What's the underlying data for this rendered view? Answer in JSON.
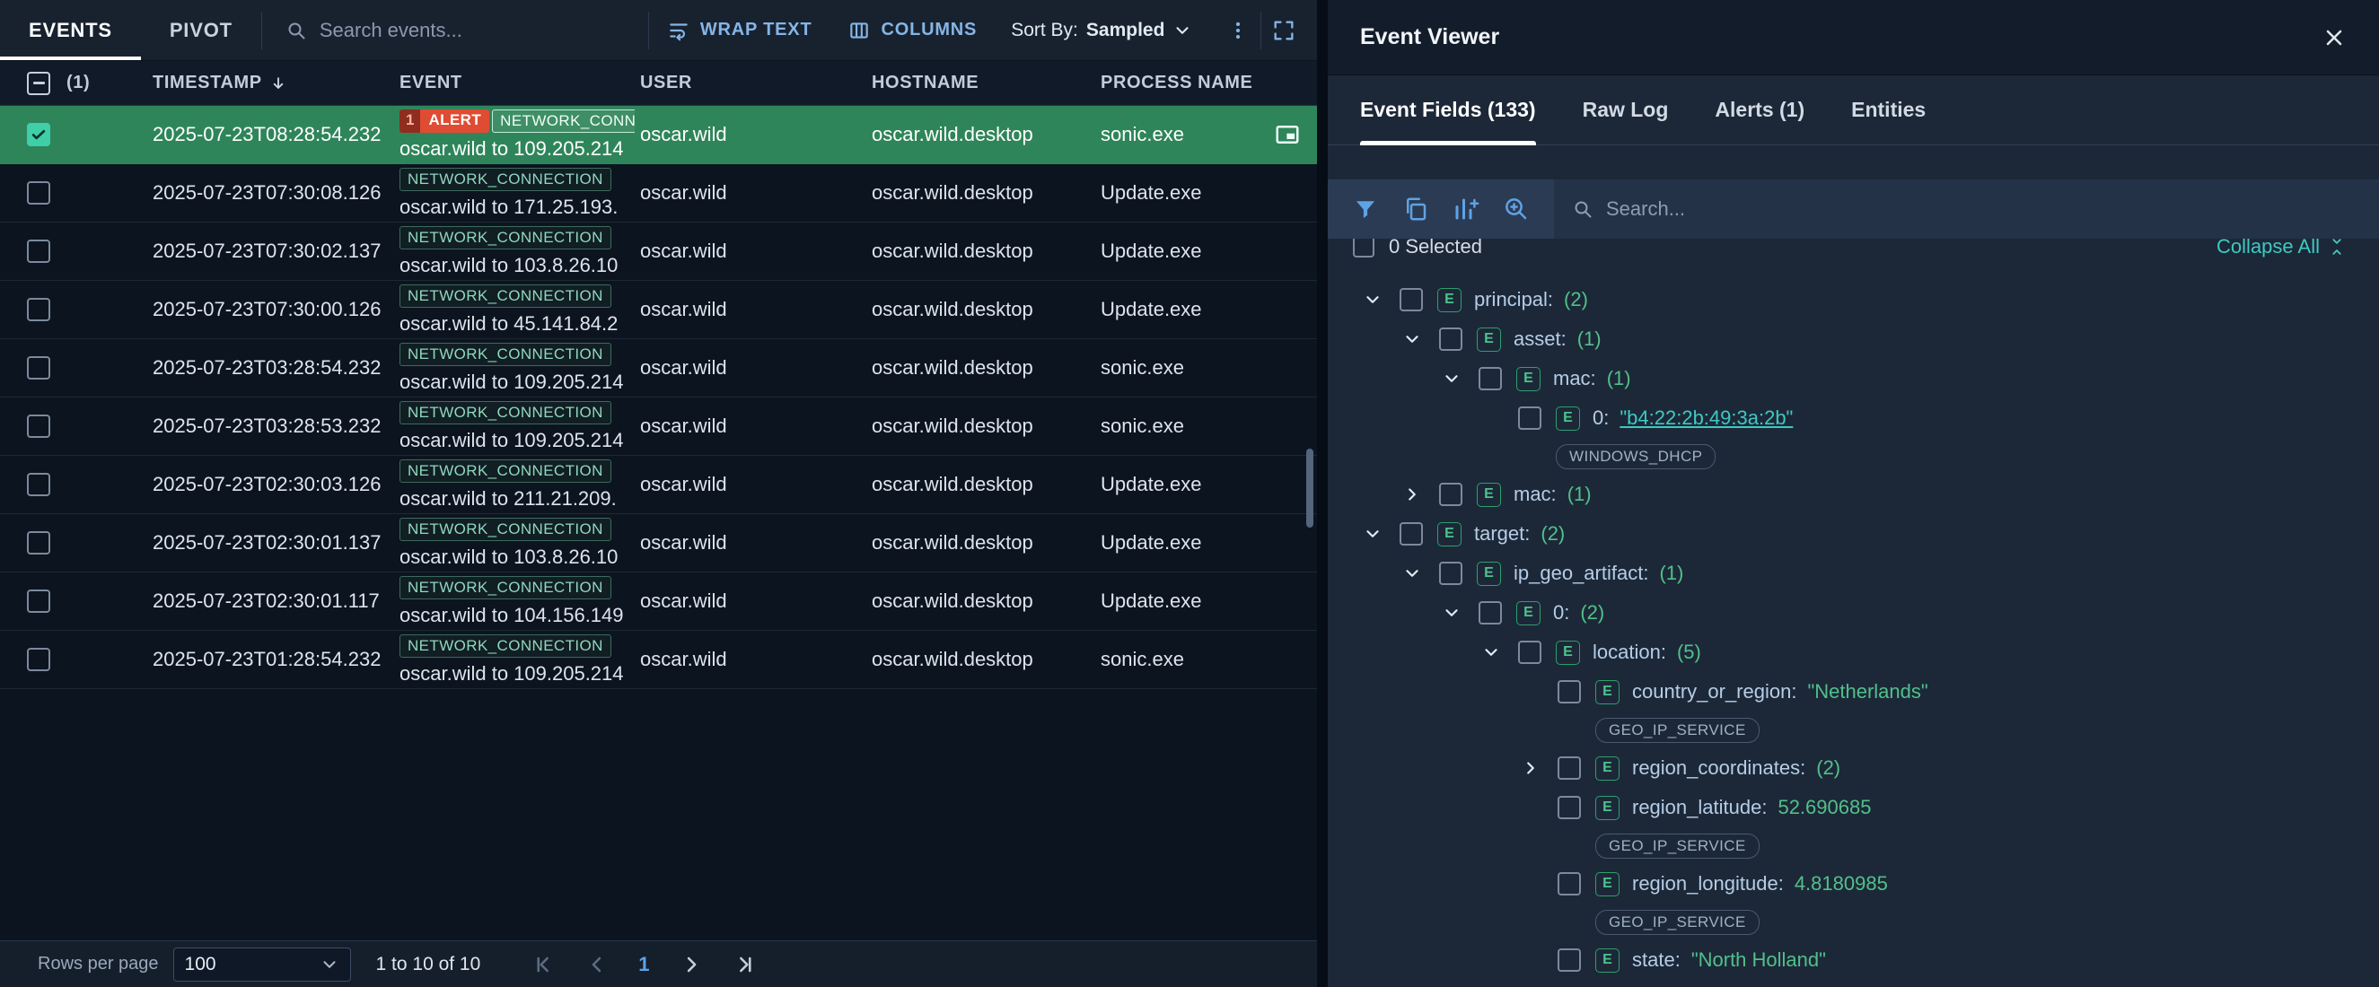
{
  "colors": {
    "selected_row_green": "#2f855a",
    "alert_red": "#e04b33",
    "event_badge_teal": "#8fd8bd",
    "accent_blue": "#5ea3e6",
    "value_green": "#52c08a",
    "link_teal": "#3fc9c0"
  },
  "left": {
    "tabs": [
      {
        "label": "EVENTS",
        "active": true
      },
      {
        "label": "PIVOT",
        "active": false
      }
    ],
    "search_placeholder": "Search events...",
    "toolbar": {
      "wrap_text": "WRAP TEXT",
      "columns": "COLUMNS",
      "sort_by_label": "Sort By:",
      "sort_by_value": "Sampled"
    },
    "table": {
      "selected_count": "(1)",
      "headers": [
        {
          "label": "TIMESTAMP",
          "sort": "desc"
        },
        {
          "label": "EVENT"
        },
        {
          "label": "USER"
        },
        {
          "label": "HOSTNAME"
        },
        {
          "label": "PROCESS NAME"
        }
      ],
      "rows": [
        {
          "selected": true,
          "timestamp": "2025-07-23T08:28:54.232",
          "alert": {
            "count": "1",
            "label": "ALERT"
          },
          "event_type": "NETWORK_CONNECTION",
          "event_detail": "oscar.wild to 109.205.214",
          "user": "oscar.wild",
          "hostname": "oscar.wild.desktop",
          "process": "sonic.exe"
        },
        {
          "selected": false,
          "timestamp": "2025-07-23T07:30:08.126",
          "event_type": "NETWORK_CONNECTION",
          "event_detail": "oscar.wild to 171.25.193.",
          "user": "oscar.wild",
          "hostname": "oscar.wild.desktop",
          "process": "Update.exe"
        },
        {
          "selected": false,
          "timestamp": "2025-07-23T07:30:02.137",
          "event_type": "NETWORK_CONNECTION",
          "event_detail": "oscar.wild to 103.8.26.10",
          "user": "oscar.wild",
          "hostname": "oscar.wild.desktop",
          "process": "Update.exe"
        },
        {
          "selected": false,
          "timestamp": "2025-07-23T07:30:00.126",
          "event_type": "NETWORK_CONNECTION",
          "event_detail": "oscar.wild to 45.141.84.2",
          "user": "oscar.wild",
          "hostname": "oscar.wild.desktop",
          "process": "Update.exe"
        },
        {
          "selected": false,
          "timestamp": "2025-07-23T03:28:54.232",
          "event_type": "NETWORK_CONNECTION",
          "event_detail": "oscar.wild to 109.205.214",
          "user": "oscar.wild",
          "hostname": "oscar.wild.desktop",
          "process": "sonic.exe"
        },
        {
          "selected": false,
          "timestamp": "2025-07-23T03:28:53.232",
          "event_type": "NETWORK_CONNECTION",
          "event_detail": "oscar.wild to 109.205.214",
          "user": "oscar.wild",
          "hostname": "oscar.wild.desktop",
          "process": "sonic.exe"
        },
        {
          "selected": false,
          "timestamp": "2025-07-23T02:30:03.126",
          "event_type": "NETWORK_CONNECTION",
          "event_detail": "oscar.wild to 211.21.209.",
          "user": "oscar.wild",
          "hostname": "oscar.wild.desktop",
          "process": "Update.exe"
        },
        {
          "selected": false,
          "timestamp": "2025-07-23T02:30:01.137",
          "event_type": "NETWORK_CONNECTION",
          "event_detail": "oscar.wild to 103.8.26.10",
          "user": "oscar.wild",
          "hostname": "oscar.wild.desktop",
          "process": "Update.exe"
        },
        {
          "selected": false,
          "timestamp": "2025-07-23T02:30:01.117",
          "event_type": "NETWORK_CONNECTION",
          "event_detail": "oscar.wild to 104.156.149",
          "user": "oscar.wild",
          "hostname": "oscar.wild.desktop",
          "process": "Update.exe"
        },
        {
          "selected": false,
          "timestamp": "2025-07-23T01:28:54.232",
          "event_type": "NETWORK_CONNECTION",
          "event_detail": "oscar.wild to 109.205.214",
          "user": "oscar.wild",
          "hostname": "oscar.wild.desktop",
          "process": "sonic.exe"
        }
      ]
    },
    "pagination": {
      "rows_per_page_label": "Rows per page",
      "rows_per_page_value": "100",
      "range_text": "1 to 10 of 10",
      "current_page": "1"
    }
  },
  "right": {
    "title": "Event Viewer",
    "tabs": [
      {
        "label": "Event Fields (133)",
        "active": true
      },
      {
        "label": "Raw Log",
        "active": false
      },
      {
        "label": "Alerts (1)",
        "active": false
      },
      {
        "label": "Entities",
        "active": false
      }
    ],
    "search_placeholder": "Search...",
    "selected_text": "0 Selected",
    "collapse_all_label": "Collapse All",
    "tree": [
      {
        "depth": 0,
        "expander": "down",
        "key": "principal:",
        "count": "(2)"
      },
      {
        "depth": 1,
        "expander": "down",
        "key": "asset:",
        "count": "(1)"
      },
      {
        "depth": 2,
        "expander": "down",
        "key": "mac:",
        "count": "(1)"
      },
      {
        "depth": 3,
        "expander": "none",
        "key": "0:",
        "value": "\"b4:22:2b:49:3a:2b\"",
        "value_style": "link",
        "badge": "WINDOWS_DHCP"
      },
      {
        "depth": 1,
        "expander": "right",
        "key": "mac:",
        "count": "(1)"
      },
      {
        "depth": 0,
        "expander": "down",
        "key": "target:",
        "count": "(2)"
      },
      {
        "depth": 1,
        "expander": "down",
        "key": "ip_geo_artifact:",
        "count": "(1)"
      },
      {
        "depth": 2,
        "expander": "down",
        "key": "0:",
        "count": "(2)"
      },
      {
        "depth": 3,
        "expander": "down",
        "key": "location:",
        "count": "(5)"
      },
      {
        "depth": 4,
        "expander": "none",
        "key": "country_or_region:",
        "value": "\"Netherlands\"",
        "value_style": "string",
        "badge": "GEO_IP_SERVICE"
      },
      {
        "depth": 4,
        "expander": "right",
        "key": "region_coordinates:",
        "count": "(2)"
      },
      {
        "depth": 4,
        "expander": "none",
        "key": "region_latitude:",
        "value": "52.690685",
        "value_style": "number",
        "badge": "GEO_IP_SERVICE"
      },
      {
        "depth": 4,
        "expander": "none",
        "key": "region_longitude:",
        "value": "4.8180985",
        "value_style": "number",
        "badge": "GEO_IP_SERVICE"
      },
      {
        "depth": 4,
        "expander": "none",
        "key": "state:",
        "value": "\"North Holland\"",
        "value_style": "string"
      }
    ]
  }
}
